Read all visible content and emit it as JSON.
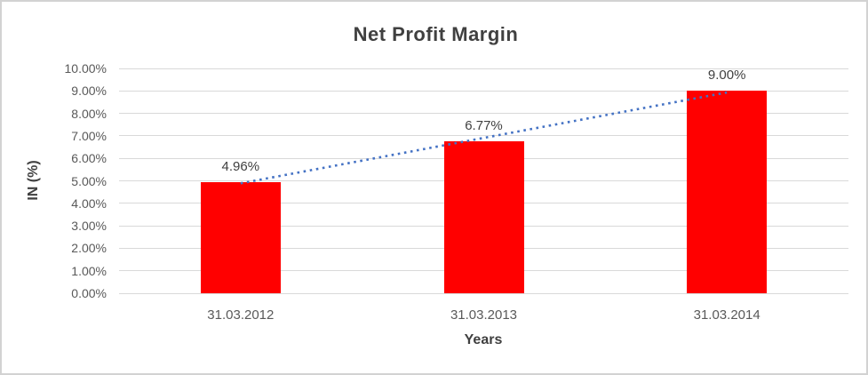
{
  "chart_data": {
    "type": "bar",
    "title": "Net Profit Margin",
    "xlabel": "Years",
    "ylabel": "IN (%)",
    "categories": [
      "31.03.2012",
      "31.03.2013",
      "31.03.2014"
    ],
    "values": [
      4.96,
      6.77,
      9.0
    ],
    "data_labels": [
      "4.96%",
      "6.77%",
      "9.00%"
    ],
    "y_tick_labels": [
      "0.00%",
      "1.00%",
      "2.00%",
      "3.00%",
      "4.00%",
      "5.00%",
      "6.00%",
      "7.00%",
      "8.00%",
      "9.00%",
      "10.00%"
    ],
    "ylim": [
      0,
      10
    ],
    "grid": true,
    "legend": "none",
    "bar_color": "#FF0000",
    "gridline_color": "#D9D9D9",
    "title_color": "#404040",
    "tick_label_color": "#595959",
    "trendline": {
      "type": "linear",
      "style": "dotted",
      "color": "#4472C4"
    }
  }
}
